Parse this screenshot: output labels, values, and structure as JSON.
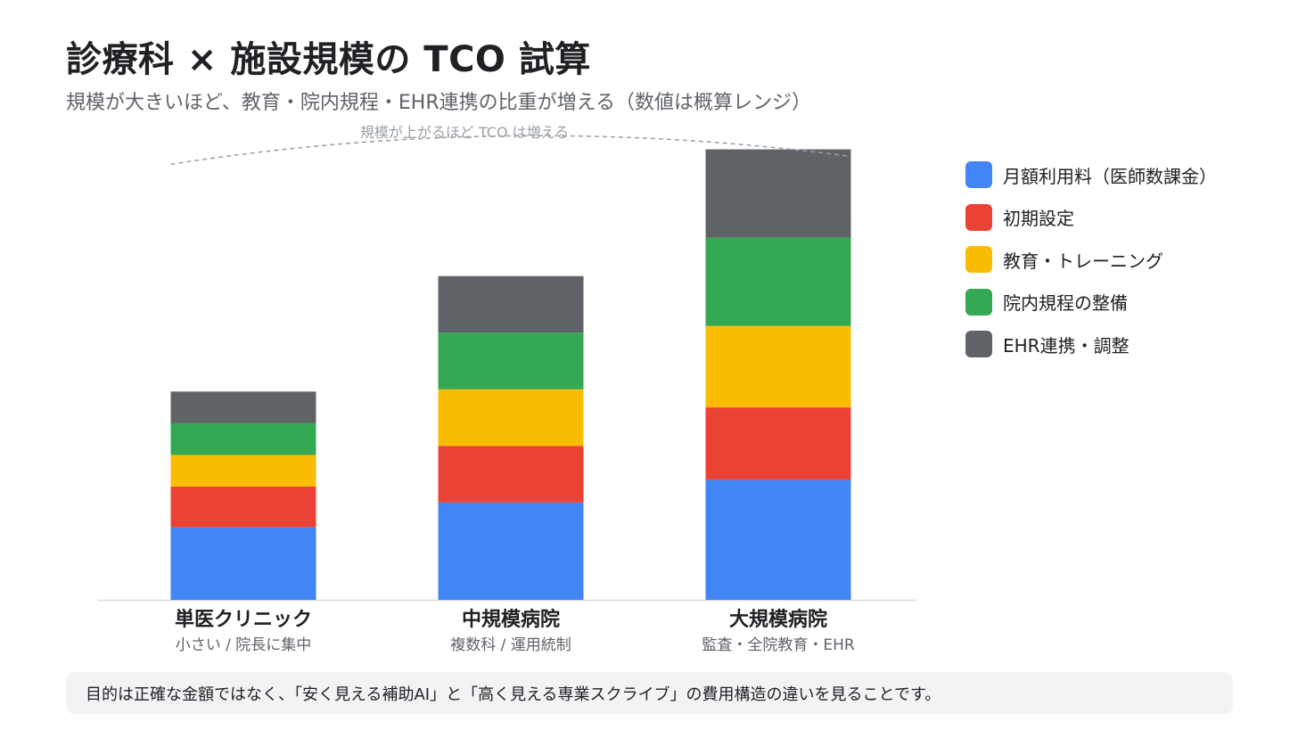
{
  "title": "診療科 × 施設規模の TCO 試算",
  "subtitle": "規模が大きいほど、教育・院内規程・EHR連携の比重が増える（数値は概算レンジ）",
  "footer": "目的は正確な金額ではなく、「安く見える補助AI」と「高く見える専業スクライブ」の費用構造の違いを見ることです。",
  "chart_data": {
    "type": "bar",
    "stacked": true,
    "title": "診療科 × 施設規模の TCO 試算",
    "subtitle": "規模が大きいほど、教育・院内規程・EHR連携の比重が増える（数値は概算レンジ）",
    "categories": [
      "単医クリニック",
      "中規模病院",
      "大規模病院"
    ],
    "category_subtitles": [
      "小さい / 院長に集中",
      "複数科 / 運用統制",
      "監査・全院教育・EHR"
    ],
    "ylim": [
      0,
      100
    ],
    "grid": false,
    "legend_position": "right",
    "series": [
      {
        "name": "月額利用料（医師数課金）",
        "color": "#4285f4",
        "values": [
          16,
          21.5,
          26.5
        ]
      },
      {
        "name": "初期設定",
        "color": "#ea4335",
        "values": [
          9,
          12.5,
          16
        ]
      },
      {
        "name": "教育・トレーニング",
        "color": "#fbbc04",
        "values": [
          7,
          12.5,
          18
        ]
      },
      {
        "name": "院内規程の整備",
        "color": "#34a853",
        "values": [
          7,
          12.5,
          19.5
        ]
      },
      {
        "name": "EHR連携・調整",
        "color": "#5f6368",
        "values": [
          7,
          12.5,
          19.5
        ]
      }
    ],
    "annotation": "規模が上がるほど TCO は増える"
  }
}
